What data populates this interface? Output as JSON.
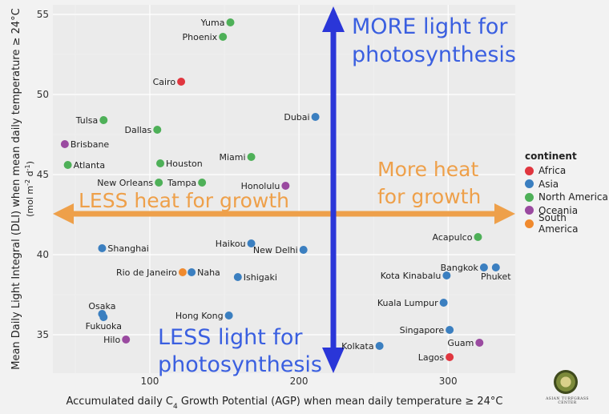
{
  "chart_data": {
    "type": "scatter",
    "xlabel_parts": [
      "Accumulated daily C",
      "4",
      " Growth Potential (AGP) when mean daily temperature ≥ 24°C"
    ],
    "ylabel": "Mean Daily Light Integral (DLI) when mean daily temperature ≥ 24°C",
    "ylabel_unit_parts": [
      "(mol m",
      "-2",
      " d",
      "-1",
      ")"
    ],
    "xlim": [
      35,
      345
    ],
    "ylim": [
      32.6,
      55.6
    ],
    "x_ticks": [
      100,
      200,
      300
    ],
    "y_ticks": [
      35,
      40,
      45,
      50,
      55
    ],
    "legend_title": "continent",
    "legend_position": "right",
    "grid": true,
    "series": [
      {
        "name": "Africa",
        "color": "#e0363f"
      },
      {
        "name": "Asia",
        "color": "#3b7fc0"
      },
      {
        "name": "North America",
        "color": "#4eb058"
      },
      {
        "name": "Oceania",
        "color": "#9a4aa0"
      },
      {
        "name": "South America",
        "color": "#f08a2e"
      }
    ],
    "points": [
      {
        "label": "Yuma",
        "x": 154,
        "y": 54.5,
        "series": "North America",
        "anchor": "left"
      },
      {
        "label": "Phoenix",
        "x": 149,
        "y": 53.6,
        "series": "North America",
        "anchor": "left"
      },
      {
        "label": "Cairo",
        "x": 121,
        "y": 50.8,
        "series": "Africa",
        "anchor": "left"
      },
      {
        "label": "Dubai",
        "x": 211,
        "y": 48.6,
        "series": "Asia",
        "anchor": "left"
      },
      {
        "label": "Tulsa",
        "x": 69,
        "y": 48.4,
        "series": "North America",
        "anchor": "left"
      },
      {
        "label": "Dallas",
        "x": 105,
        "y": 47.8,
        "series": "North America",
        "anchor": "left"
      },
      {
        "label": "Brisbane",
        "x": 43,
        "y": 46.9,
        "series": "Oceania",
        "anchor": "right"
      },
      {
        "label": "Miami",
        "x": 168,
        "y": 46.1,
        "series": "North America",
        "anchor": "left"
      },
      {
        "label": "Houston",
        "x": 107,
        "y": 45.7,
        "series": "North America",
        "anchor": "right"
      },
      {
        "label": "Atlanta",
        "x": 45,
        "y": 45.6,
        "series": "North America",
        "anchor": "right"
      },
      {
        "label": "New Orleans",
        "x": 106,
        "y": 44.5,
        "series": "North America",
        "anchor": "left"
      },
      {
        "label": "Tampa",
        "x": 135,
        "y": 44.5,
        "series": "North America",
        "anchor": "left"
      },
      {
        "label": "Honolulu",
        "x": 191,
        "y": 44.3,
        "series": "Oceania",
        "anchor": "left"
      },
      {
        "label": "Acapulco",
        "x": 320,
        "y": 41.1,
        "series": "North America",
        "anchor": "left"
      },
      {
        "label": "Haikou",
        "x": 168,
        "y": 40.7,
        "series": "Asia",
        "anchor": "left"
      },
      {
        "label": "Shanghai",
        "x": 68,
        "y": 40.4,
        "series": "Asia",
        "anchor": "right"
      },
      {
        "label": "New Delhi",
        "x": 203,
        "y": 40.3,
        "series": "Asia",
        "anchor": "left"
      },
      {
        "label": "Bangkok",
        "x": 324,
        "y": 39.2,
        "series": "Asia",
        "anchor": "left"
      },
      {
        "label": "Phuket",
        "x": 332,
        "y": 39.2,
        "series": "Asia",
        "anchor": "below"
      },
      {
        "label": "Rio de Janeiro",
        "x": 122,
        "y": 38.9,
        "series": "South America",
        "anchor": "left"
      },
      {
        "label": "Naha",
        "x": 128,
        "y": 38.9,
        "series": "Asia",
        "anchor": "right"
      },
      {
        "label": "Ishigaki",
        "x": 159,
        "y": 38.6,
        "series": "Asia",
        "anchor": "right"
      },
      {
        "label": "Kota Kinabalu",
        "x": 299,
        "y": 38.7,
        "series": "Asia",
        "anchor": "left"
      },
      {
        "label": "Kuala Lumpur",
        "x": 297,
        "y": 37.0,
        "series": "Asia",
        "anchor": "left"
      },
      {
        "label": "Osaka",
        "x": 68,
        "y": 36.3,
        "series": "Asia",
        "anchor": "above"
      },
      {
        "label": "Fukuoka",
        "x": 69,
        "y": 36.1,
        "series": "Asia",
        "anchor": "below"
      },
      {
        "label": "Hong Kong",
        "x": 153,
        "y": 36.2,
        "series": "Asia",
        "anchor": "left"
      },
      {
        "label": "Singapore",
        "x": 301,
        "y": 35.3,
        "series": "Asia",
        "anchor": "left"
      },
      {
        "label": "Hilo",
        "x": 84,
        "y": 34.7,
        "series": "Oceania",
        "anchor": "left"
      },
      {
        "label": "Guam",
        "x": 321,
        "y": 34.5,
        "series": "Oceania",
        "anchor": "left"
      },
      {
        "label": "Kolkata",
        "x": 254,
        "y": 34.3,
        "series": "Asia",
        "anchor": "left"
      },
      {
        "label": "Lagos",
        "x": 301,
        "y": 33.6,
        "series": "Africa",
        "anchor": "left"
      }
    ],
    "annotations": {
      "vertical_arrow_color": "#2a36d8",
      "horizontal_arrow_color": "#eea04a",
      "more_light": [
        "MORE light for",
        "photosynthesis"
      ],
      "less_light": [
        "LESS light for",
        "photosynthesis"
      ],
      "more_heat": [
        "More heat",
        "for growth"
      ],
      "less_heat": "LESS heat for growth"
    }
  },
  "logo": {
    "text": "ASIAN TURFGRASS CENTER"
  }
}
